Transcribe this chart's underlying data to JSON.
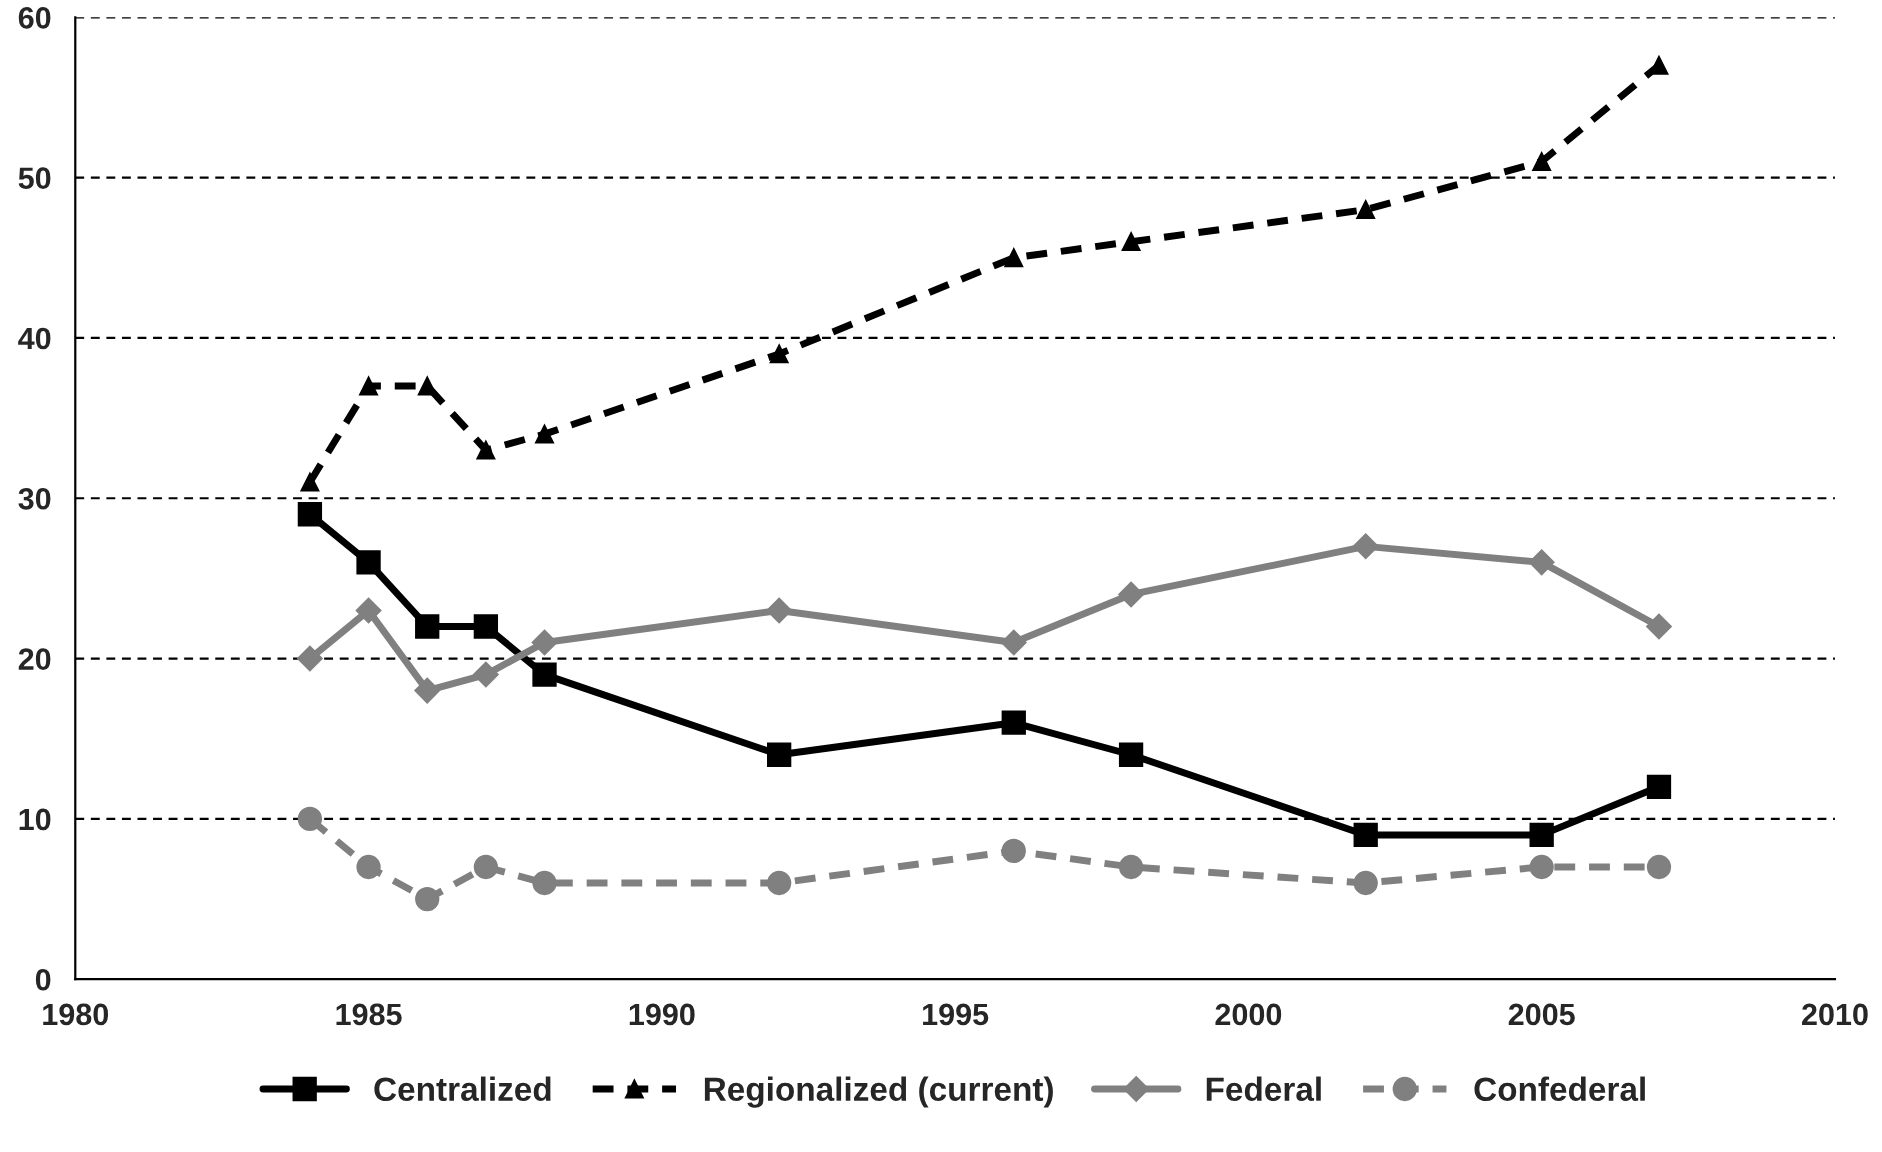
{
  "chart_data": {
    "type": "line",
    "x": [
      1984,
      1985,
      1986,
      1987,
      1988,
      1992,
      1996,
      1998,
      2002,
      2005,
      2007
    ],
    "series": [
      {
        "name": "Centralized",
        "color": "#000000",
        "marker": "square",
        "line_style": "solid",
        "values": [
          29,
          26,
          22,
          22,
          19,
          14,
          16,
          14,
          9,
          9,
          12
        ]
      },
      {
        "name": "Regionalized (current)",
        "color": "#000000",
        "marker": "triangle",
        "line_style": "dashed",
        "values": [
          31,
          37,
          37,
          33,
          34,
          39,
          45,
          46,
          48,
          51,
          57
        ]
      },
      {
        "name": "Federal",
        "color": "#808080",
        "marker": "diamond",
        "line_style": "solid",
        "values": [
          20,
          23,
          18,
          19,
          21,
          23,
          21,
          24,
          27,
          26,
          22
        ]
      },
      {
        "name": "Confederal",
        "color": "#808080",
        "marker": "circle",
        "line_style": "dashed",
        "values": [
          10,
          7,
          5,
          7,
          6,
          6,
          8,
          7,
          6,
          7,
          7
        ]
      }
    ],
    "xlim": [
      1980,
      2010
    ],
    "xticks": [
      1980,
      1985,
      1990,
      1995,
      2000,
      2005,
      2010
    ],
    "ylim": [
      0,
      60
    ],
    "yticks": [
      0,
      10,
      20,
      30,
      40,
      50,
      60
    ],
    "grid": "y",
    "legend": "bottom"
  }
}
